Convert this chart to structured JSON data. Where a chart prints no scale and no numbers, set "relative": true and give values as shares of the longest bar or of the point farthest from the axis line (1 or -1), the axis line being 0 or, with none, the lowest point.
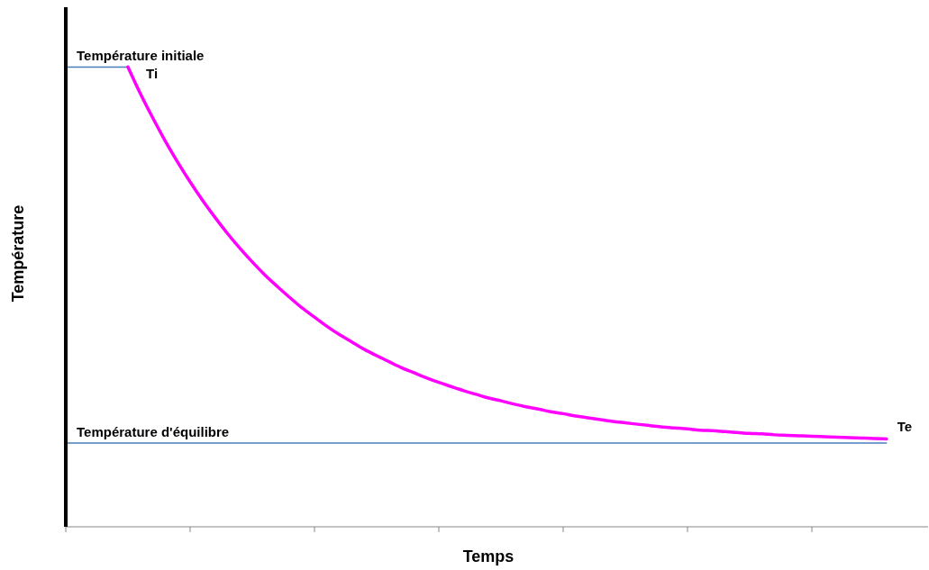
{
  "chart_data": {
    "type": "line",
    "relative": true,
    "xlabel": "Temps",
    "ylabel": "Température",
    "categories": [
      null,
      null,
      null,
      null,
      null,
      null,
      null,
      null,
      null,
      null,
      null,
      null,
      null,
      null,
      null,
      null,
      null,
      null,
      null,
      null,
      null,
      null,
      null,
      null,
      null,
      null,
      null,
      null,
      null,
      null,
      null,
      null,
      null,
      null,
      null,
      null,
      null,
      null,
      null,
      null,
      null,
      null,
      null,
      null,
      null,
      null,
      null,
      null,
      null,
      null,
      null,
      null,
      null,
      null,
      null,
      null,
      null,
      null,
      null,
      null,
      null,
      null,
      null,
      null,
      null,
      null,
      null,
      null,
      null,
      null
    ],
    "series": [
      {
        "name": "Température initiale",
        "color": "#4a7ebb",
        "values": [
          1,
          1,
          1,
          1,
          1,
          1,
          null,
          null,
          null,
          null,
          null,
          null,
          null,
          null,
          null,
          null,
          null,
          null,
          null,
          null,
          null,
          null,
          null,
          null,
          null,
          null,
          null,
          null,
          null,
          null,
          null,
          null,
          null,
          null,
          null,
          null,
          null,
          null,
          null,
          null,
          null,
          null,
          null,
          null,
          null,
          null,
          null,
          null,
          null,
          null,
          null,
          null,
          null,
          null,
          null,
          null,
          null,
          null,
          null,
          null,
          null,
          null,
          null,
          null,
          null,
          null,
          null,
          null,
          null,
          null
        ]
      },
      {
        "name": "Température d'équilibre",
        "color": "#4a7ebb",
        "values": [
          0.182,
          0.182,
          0.182,
          0.182,
          0.182,
          0.182,
          0.182,
          0.182,
          0.182,
          0.182,
          0.182,
          0.182,
          0.182,
          0.182,
          0.182,
          0.182,
          0.182,
          0.182,
          0.182,
          0.182,
          0.182,
          0.182,
          0.182,
          0.182,
          0.182,
          0.182,
          0.182,
          0.182,
          0.182,
          0.182,
          0.182,
          0.182,
          0.182,
          0.182,
          0.182,
          0.182,
          0.182,
          0.182,
          0.182,
          0.182,
          0.182,
          0.182,
          0.182,
          0.182,
          0.182,
          0.182,
          0.182,
          0.182,
          0.182,
          0.182,
          0.182,
          0.182,
          0.182,
          0.182,
          0.182,
          0.182,
          0.182,
          0.182,
          0.182,
          0.182,
          0.182,
          0.182,
          0.182,
          0.182,
          0.182,
          0.182,
          0.182,
          null,
          null,
          null
        ]
      },
      {
        "color": "#ff00ff",
        "values": [
          null,
          null,
          null,
          null,
          null,
          1,
          0.942,
          0.889,
          0.839,
          0.793,
          0.75,
          0.71,
          0.673,
          0.638,
          0.606,
          0.576,
          0.548,
          0.523,
          0.499,
          0.476,
          0.456,
          0.436,
          0.418,
          0.402,
          0.386,
          0.372,
          0.359,
          0.346,
          0.335,
          0.324,
          0.314,
          0.305,
          0.296,
          0.288,
          0.28,
          0.274,
          0.267,
          0.261,
          0.256,
          0.25,
          0.246,
          0.241,
          0.237,
          0.233,
          0.229,
          0.226,
          0.223,
          0.22,
          0.217,
          0.215,
          0.213,
          0.21,
          0.209,
          0.207,
          0.205,
          0.203,
          0.202,
          0.2,
          0.199,
          0.198,
          0.197,
          0.196,
          0.195,
          0.194,
          0.193,
          0.192,
          0.191,
          null,
          null,
          null
        ]
      }
    ],
    "annotations": [
      "Ti",
      "Te"
    ]
  }
}
